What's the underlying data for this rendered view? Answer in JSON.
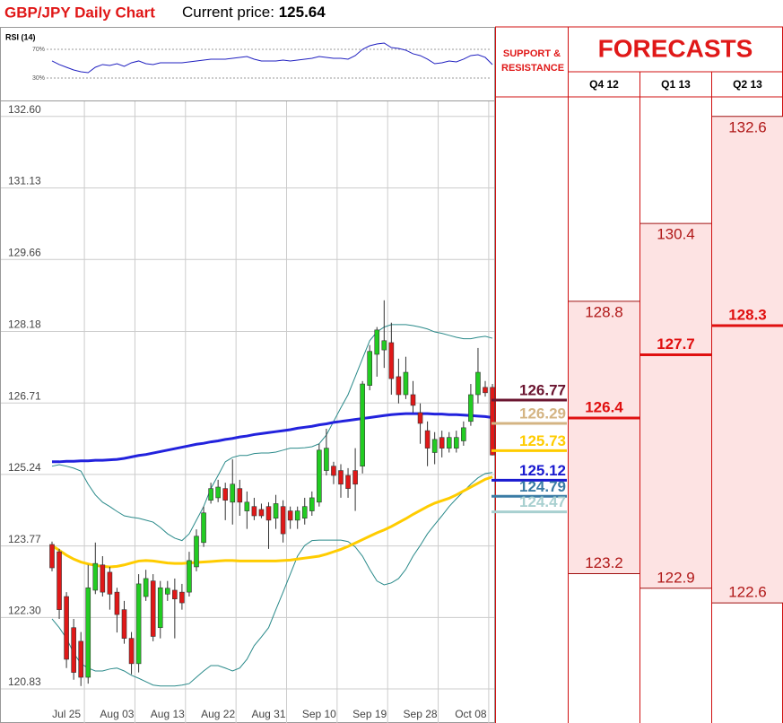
{
  "chart_data": [
    {
      "type": "candlestick",
      "title": "GBP/JPY Daily Chart",
      "price_label": "Current price:",
      "current_price": 125.64,
      "categories": [
        null,
        null,
        "Jul 25",
        null,
        null,
        null,
        null,
        null,
        null,
        "Aug 03",
        null,
        null,
        null,
        null,
        null,
        null,
        "Aug 13",
        null,
        null,
        null,
        null,
        null,
        null,
        "Aug 22",
        null,
        null,
        null,
        null,
        null,
        null,
        "Aug 31",
        null,
        null,
        null,
        null,
        null,
        null,
        "Sep 10",
        null,
        null,
        null,
        null,
        null,
        null,
        "Sep 19",
        null,
        null,
        null,
        null,
        null,
        null,
        "Sep 28",
        null,
        null,
        null,
        null,
        null,
        null,
        "Oct 08",
        null,
        null,
        null
      ],
      "open": [
        123.8,
        123.65,
        122.73,
        122.09,
        121.81,
        121.07,
        122.86,
        123.38,
        123.23,
        122.82,
        122.46,
        121.87,
        121.35,
        122.73,
        123.05,
        122.09,
        122.78,
        122.86,
        122.82,
        122.82,
        123.34,
        123.84,
        124.71,
        124.76,
        124.95,
        124.67,
        124.95,
        124.49,
        124.58,
        124.52,
        124.58,
        124.34,
        124.58,
        124.49,
        124.3,
        124.34,
        124.49,
        124.67,
        125.32,
        125.41,
        125.32,
        125.22,
        125.32,
        125.41,
        127.07,
        127.71,
        127.8,
        127.95,
        127.25,
        126.88,
        126.88,
        126.51,
        126.14,
        125.69,
        126.0,
        125.78,
        125.78,
        125.93,
        126.33,
        126.88,
        127.03,
        127.03
      ],
      "high": [
        123.86,
        123.71,
        122.82,
        122.27,
        122.0,
        123.38,
        123.84,
        123.56,
        123.34,
        122.91,
        122.64,
        122.0,
        123.19,
        123.28,
        123.19,
        123.05,
        123.05,
        123.1,
        122.99,
        123.65,
        124.11,
        124.58,
        125.07,
        125.13,
        125.07,
        125.55,
        125.13,
        124.89,
        124.76,
        124.64,
        124.67,
        124.82,
        124.71,
        124.58,
        124.58,
        124.76,
        124.89,
        125.87,
        126.18,
        125.5,
        125.45,
        125.37,
        125.78,
        127.16,
        127.9,
        128.27,
        128.82,
        128.36,
        127.62,
        127.66,
        127.16,
        126.7,
        126.33,
        126.11,
        126.14,
        126.11,
        126.14,
        126.33,
        127.1,
        127.84,
        127.16,
        127.1
      ],
      "low": [
        123.25,
        122.27,
        121.26,
        121.02,
        120.89,
        120.94,
        122.78,
        122.73,
        122.46,
        121.99,
        121.76,
        121.13,
        121.17,
        122.64,
        121.81,
        121.87,
        122.64,
        121.87,
        122.46,
        122.73,
        123.25,
        123.75,
        124.64,
        124.67,
        124.3,
        124.21,
        124.39,
        124.12,
        124.3,
        124.34,
        123.71,
        124.12,
        123.84,
        124.12,
        124.12,
        124.21,
        124.39,
        124.58,
        125.22,
        125.04,
        124.76,
        124.76,
        124.49,
        125.26,
        126.97,
        127.25,
        127.43,
        126.88,
        126.7,
        126.79,
        126.51,
        125.87,
        125.41,
        125.45,
        125.59,
        125.69,
        125.69,
        125.83,
        126.24,
        126.7,
        126.84,
        125.63
      ],
      "close": [
        123.32,
        122.46,
        121.44,
        121.17,
        121.07,
        122.91,
        123.41,
        122.82,
        122.78,
        122.36,
        121.87,
        121.35,
        122.99,
        123.1,
        121.91,
        122.91,
        122.9,
        122.68,
        122.6,
        123.47,
        123.97,
        124.45,
        124.95,
        124.98,
        124.71,
        125.04,
        124.67,
        124.67,
        124.39,
        124.39,
        124.3,
        124.64,
        124.02,
        124.3,
        124.49,
        124.58,
        124.76,
        125.74,
        125.78,
        125.22,
        125.04,
        124.95,
        125.04,
        127.1,
        127.77,
        128.21,
        127.99,
        127.21,
        126.88,
        127.34,
        126.66,
        126.29,
        125.78,
        125.96,
        125.78,
        126.0,
        126.0,
        126.2,
        126.88,
        127.34,
        126.92,
        125.64
      ],
      "up_color": "#22cc22",
      "down_color": "#e01818",
      "series": [
        {
          "color": "#2a8a8a",
          "values": [
            125.41,
            125.44,
            125.41,
            125.37,
            125.31,
            125.04,
            124.82,
            124.67,
            124.58,
            124.48,
            124.39,
            124.36,
            124.34,
            124.3,
            124.26,
            124.15,
            124.02,
            123.93,
            123.88,
            124.02,
            124.3,
            124.58,
            124.95,
            125.22,
            125.5,
            125.59,
            125.63,
            125.63,
            125.67,
            125.68,
            125.68,
            125.7,
            125.74,
            125.78,
            125.78,
            125.79,
            125.81,
            125.87,
            126.05,
            126.33,
            126.61,
            126.88,
            127.25,
            127.62,
            127.99,
            128.17,
            128.27,
            128.32,
            128.32,
            128.32,
            128.3,
            128.27,
            128.23,
            128.17,
            128.14,
            128.1,
            128.06,
            128.03,
            128.03,
            128.06,
            128.08,
            128.04
          ]
        },
        {
          "color": "#2a8a8a",
          "values": [
            122.27,
            122.09,
            121.87,
            121.57,
            121.35,
            121.26,
            121.2,
            121.2,
            121.24,
            121.26,
            121.2,
            121.11,
            121.05,
            120.98,
            120.91,
            120.89,
            120.89,
            120.89,
            120.91,
            120.94,
            121.07,
            121.2,
            121.31,
            121.31,
            121.26,
            121.2,
            121.26,
            121.44,
            121.72,
            121.9,
            122.09,
            122.46,
            122.82,
            123.19,
            123.56,
            123.78,
            123.88,
            123.89,
            123.89,
            123.89,
            123.89,
            123.86,
            123.75,
            123.56,
            123.29,
            123.05,
            122.97,
            123.01,
            123.1,
            123.29,
            123.56,
            123.78,
            124.02,
            124.21,
            124.39,
            124.58,
            124.74,
            124.89,
            125.04,
            125.17,
            125.26,
            125.28
          ]
        },
        {
          "color": "#ffcc00",
          "values": [
            123.78,
            123.68,
            123.58,
            123.5,
            123.44,
            123.4,
            123.37,
            123.35,
            123.34,
            123.35,
            123.38,
            123.42,
            123.46,
            123.47,
            123.46,
            123.44,
            123.42,
            123.41,
            123.41,
            123.42,
            123.43,
            123.44,
            123.45,
            123.46,
            123.47,
            123.47,
            123.46,
            123.46,
            123.46,
            123.46,
            123.46,
            123.46,
            123.47,
            123.48,
            123.5,
            123.52,
            123.54,
            123.56,
            123.6,
            123.65,
            123.7,
            123.76,
            123.83,
            123.9,
            123.97,
            124.04,
            124.1,
            124.17,
            124.25,
            124.33,
            124.42,
            124.5,
            124.58,
            124.65,
            124.7,
            124.75,
            124.82,
            124.9,
            124.98,
            125.06,
            125.14,
            125.19
          ]
        },
        {
          "color": "#2222dd",
          "values": [
            125.5,
            125.5,
            125.51,
            125.51,
            125.52,
            125.52,
            125.53,
            125.53,
            125.54,
            125.55,
            125.57,
            125.6,
            125.63,
            125.65,
            125.68,
            125.71,
            125.74,
            125.77,
            125.8,
            125.83,
            125.86,
            125.88,
            125.91,
            125.93,
            125.96,
            125.98,
            126.01,
            126.03,
            126.06,
            126.08,
            126.1,
            126.12,
            126.14,
            126.16,
            126.19,
            126.21,
            126.23,
            126.26,
            126.28,
            126.31,
            126.33,
            126.35,
            126.37,
            126.39,
            126.41,
            126.43,
            126.45,
            126.47,
            126.48,
            126.49,
            126.49,
            126.49,
            126.49,
            126.48,
            126.48,
            126.47,
            126.47,
            126.46,
            126.45,
            126.44,
            126.43,
            126.41
          ]
        }
      ],
      "ylim": [
        120.13,
        132.91
      ],
      "yticks": [
        {
          "value": 132.6,
          "label": "132.60"
        },
        131.13,
        129.66,
        128.18,
        126.71,
        125.24,
        123.77,
        {
          "value": 122.3,
          "label": "122.30"
        },
        120.83
      ],
      "grid": true
    },
    {
      "type": "line",
      "title": "RSI (14)",
      "color": "#2020c0",
      "values": [
        53.8,
        48.8,
        45,
        41.3,
        38.8,
        37.5,
        45,
        48.8,
        47.5,
        50,
        46.3,
        51.3,
        53.8,
        50,
        48.8,
        51.3,
        51.3,
        51.3,
        51.3,
        52.5,
        53.8,
        55,
        56.3,
        56.3,
        56.3,
        57.5,
        58.8,
        60,
        56.3,
        53.8,
        53.8,
        53.8,
        55,
        53.8,
        55,
        56.3,
        57.5,
        60,
        58.8,
        57.5,
        57.5,
        56.3,
        61.3,
        70,
        75,
        77.5,
        78.8,
        72.5,
        71.3,
        68.8,
        63.8,
        61.3,
        56.3,
        50,
        51.3,
        53.8,
        52.5,
        56.3,
        61.3,
        62.5,
        58.8,
        48.8
      ],
      "ylim": [
        0,
        86
      ],
      "yticks": [
        {
          "value": 70,
          "label": "70%"
        },
        {
          "value": 30,
          "label": "30%"
        }
      ]
    },
    {
      "type": "levels",
      "title": "SUPPORT & RESISTANCE",
      "values": [
        126.77,
        126.29,
        125.73,
        125.12,
        124.79,
        124.47
      ],
      "colors": [
        "#6b1530",
        "#d4b483",
        "#ffcc00",
        "#1a1ad0",
        "#3a7ca5",
        "#a8d0d0"
      ],
      "ylim": [
        120.13,
        132.91
      ]
    },
    {
      "type": "forecast",
      "title": "FORECASTS",
      "categories": [
        "Q4 12",
        "Q1 13",
        "Q2 13"
      ],
      "high": [
        128.8,
        130.4,
        132.6
      ],
      "mid": [
        126.4,
        127.7,
        128.3
      ],
      "low": [
        123.2,
        122.9,
        122.6
      ],
      "ylim": [
        120.13,
        132.91
      ]
    }
  ]
}
